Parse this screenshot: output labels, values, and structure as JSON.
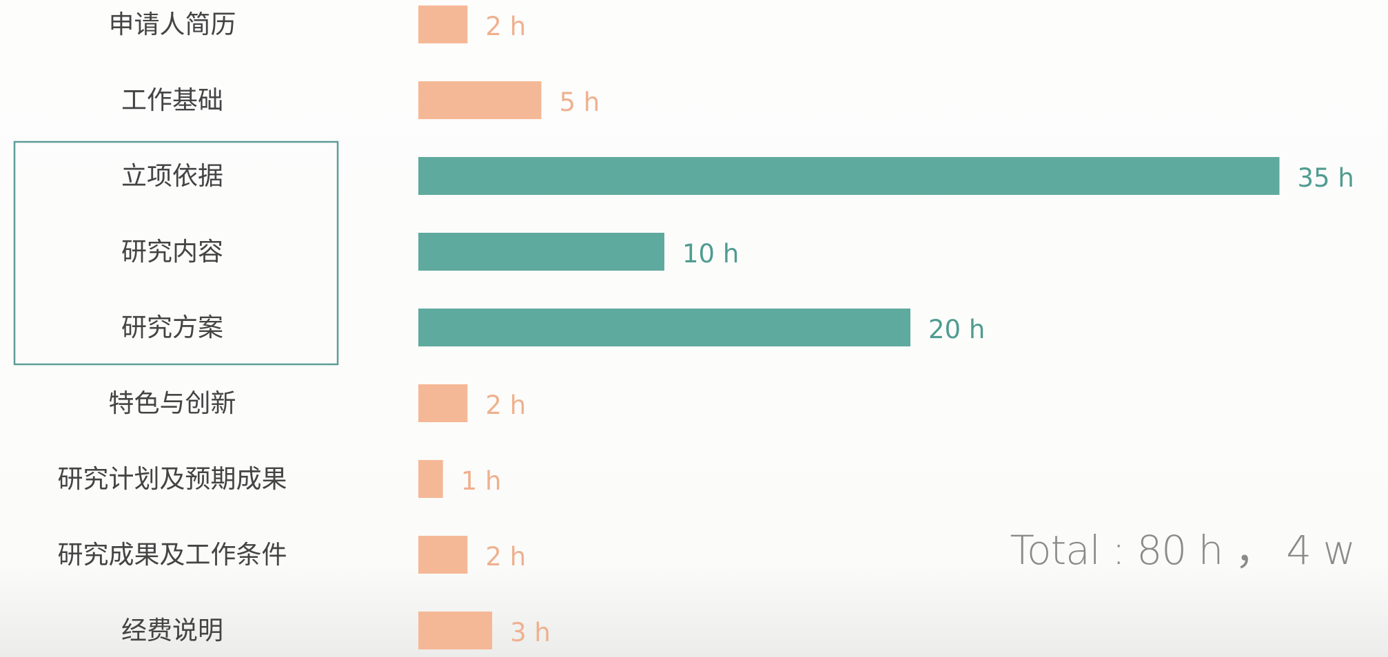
{
  "chart_data": {
    "type": "bar",
    "orientation": "horizontal",
    "categories": [
      "申请人简历",
      "工作基础",
      "立项依据",
      "研究内容",
      "研究方案",
      "特色与创新",
      "研究计划及预期成果",
      "研究成果及工作条件",
      "经费说明"
    ],
    "values": [
      2,
      5,
      35,
      10,
      20,
      2,
      1,
      2,
      3
    ],
    "value_labels": [
      "2 h",
      "5 h",
      "35 h",
      "10 h",
      "20 h",
      "2 h",
      "1 h",
      "2 h",
      "3 h"
    ],
    "highlighted": [
      false,
      false,
      true,
      true,
      true,
      false,
      false,
      false,
      false
    ],
    "highlight_box_categories": [
      "立项依据",
      "研究内容",
      "研究方案"
    ],
    "xlim": [
      0,
      35
    ],
    "grid": false,
    "title": "",
    "xlabel": "",
    "ylabel": ""
  },
  "colors": {
    "normal_bar": "#f5b896",
    "highlight_bar": "#5faa9e",
    "normal_label": "#efb08e",
    "highlight_label": "#4f9c90",
    "category_text": "#444444",
    "highlight_box": "#5d9c97",
    "total_text": "#8a8a8a"
  },
  "total_label": "Total : 80 h ， 4 w"
}
